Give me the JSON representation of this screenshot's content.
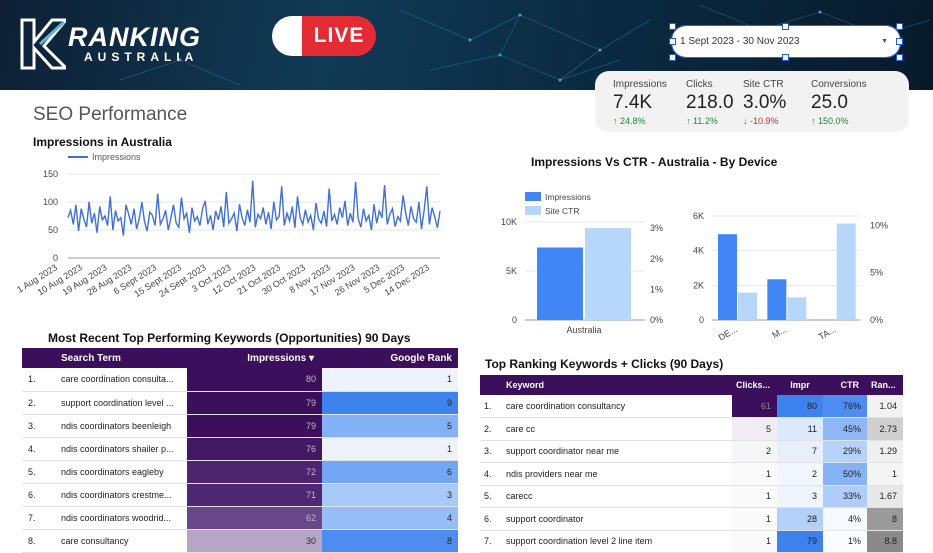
{
  "brand": {
    "name": "RANKING",
    "sub": "AUSTRALIA",
    "live": "LIVE"
  },
  "date_range": "1 Sept 2023 - 30 Nov 2023",
  "page_title": "SEO Performance",
  "kpis": [
    {
      "label": "Impressions",
      "value": "7.4K",
      "delta": "↑ 24.8%",
      "dir": "up"
    },
    {
      "label": "Clicks",
      "value": "218.0",
      "delta": "↑ 11.2%",
      "dir": "up"
    },
    {
      "label": "Site CTR",
      "value": "3.0%",
      "delta": "↓ -10.9%",
      "dir": "down"
    },
    {
      "label": "Conversions",
      "value": "25.0",
      "delta": "↑ 150.0%",
      "dir": "up"
    }
  ],
  "chart_data": [
    {
      "type": "line",
      "title": "Impressions in Australia",
      "legend": [
        "Impressions"
      ],
      "ylim": [
        0,
        150
      ],
      "yticks": [
        "150",
        "100",
        "50",
        "0"
      ],
      "xticks": [
        "1 Aug 2023",
        "10 Aug 2023",
        "19 Aug 2023",
        "28 Aug 2023",
        "6 Sept 2023",
        "15 Sept 2023",
        "24 Sept 2023",
        "3 Oct 2023",
        "12 Oct 2023",
        "21 Oct 2023",
        "30 Oct 2023",
        "8 Nov 2023",
        "17 Nov 2023",
        "26 Nov 2023",
        "5 Dec 2023",
        "14 Dec 2023"
      ],
      "series": [
        {
          "name": "Impressions",
          "color": "#3f6fd8",
          "values": [
            72,
            85,
            60,
            95,
            48,
            88,
            70,
            55,
            100,
            62,
            80,
            45,
            92,
            68,
            75,
            58,
            110,
            50,
            85,
            66,
            72,
            40,
            95,
            78,
            60,
            88,
            52,
            70,
            100,
            65,
            48,
            82,
            76,
            58,
            115,
            60,
            70,
            85,
            50,
            72,
            95,
            62,
            55,
            108,
            70,
            80,
            45,
            90,
            66,
            74,
            58,
            88,
            102,
            60,
            76,
            50,
            84,
            68,
            92,
            55,
            118,
            62,
            70,
            80,
            48,
            96,
            72,
            58,
            86,
            64,
            138,
            55,
            78,
            70,
            90,
            60,
            82,
            52,
            100,
            68,
            74,
            128,
            58,
            80,
            66,
            92,
            54,
            110,
            72,
            60,
            86,
            64,
            76,
            50,
            98,
            70,
            62,
            84,
            56,
            124,
            66,
            78,
            60,
            90,
            72,
            102,
            58,
            80,
            64,
            136,
            70,
            55,
            88,
            66,
            76,
            50,
            96,
            62,
            84,
            72,
            130,
            60,
            78,
            88,
            56,
            74,
            66,
            112,
            80,
            58,
            92,
            70,
            64,
            100,
            52,
            86,
            128,
            60,
            90,
            74,
            54,
            84
          ]
        }
      ]
    },
    {
      "type": "bar",
      "title": "Impressions Vs CTR - Australia - By Device",
      "legend": [
        "Impressions",
        "Site CTR"
      ],
      "categories": [
        "Australia"
      ],
      "series": [
        {
          "name": "Impressions",
          "color": "#4285f4",
          "values": [
            7400
          ]
        },
        {
          "name": "Site CTR",
          "color": "#b6d7fb",
          "values": [
            3.0
          ]
        }
      ],
      "yticks_left": [
        "10K",
        "5K",
        "0"
      ],
      "yticks_right": [
        "3%",
        "2%",
        "1%",
        "0%"
      ]
    },
    {
      "type": "bar",
      "categories": [
        "DE...",
        "M...",
        "TA..."
      ],
      "series": [
        {
          "name": "Impressions",
          "color": "#4285f4",
          "values": [
            4950,
            2350,
            0
          ]
        },
        {
          "name": "Site CTR",
          "color": "#b6d7fb",
          "values": [
            2.9,
            2.4,
            10.2
          ]
        }
      ],
      "yticks_left": [
        "6K",
        "4K",
        "2K",
        "0"
      ],
      "yticks_right": [
        "10%",
        "5%",
        "0%"
      ]
    }
  ],
  "table1": {
    "title": "Most Recent Top Performing Keywords (Opportunities) 90 Days",
    "headers": [
      "Search Term",
      "Impressions ▾",
      "Google Rank"
    ],
    "rows": [
      {
        "i": "1.",
        "term": "care coordination consulta...",
        "impr": "80",
        "rank": "1",
        "ic": "#3b0f5b",
        "rc": "#eef2fb"
      },
      {
        "i": "2.",
        "term": "support coordination level ...",
        "impr": "79",
        "rank": "9",
        "ic": "#3b0f5b",
        "rc": "#3e82ee"
      },
      {
        "i": "3.",
        "term": "ndis coordinators beenleigh",
        "impr": "79",
        "rank": "5",
        "ic": "#3b0f5b",
        "rc": "#82b1f5"
      },
      {
        "i": "4.",
        "term": "ndis coordinators shailer p...",
        "impr": "76",
        "rank": "1",
        "ic": "#421763",
        "rc": "#eef2fb"
      },
      {
        "i": "5.",
        "term": "ndis coordinators eagleby",
        "impr": "72",
        "rank": "6",
        "ic": "#4c2470",
        "rc": "#73a6f3"
      },
      {
        "i": "6.",
        "term": "ndis coordinators crestme...",
        "impr": "71",
        "rank": "3",
        "ic": "#4e2772",
        "rc": "#a9c9f8"
      },
      {
        "i": "7.",
        "term": "ndis coordinators woodrid...",
        "impr": "62",
        "rank": "4",
        "ic": "#684888",
        "rc": "#97bdf6"
      },
      {
        "i": "8.",
        "term": "care consultancy",
        "impr": "30",
        "rank": "8",
        "ic": "#b7a5c6",
        "rc": "#4f8cf0"
      }
    ]
  },
  "table2": {
    "title": "Top Ranking Keywords + Clicks (90 Days)",
    "headers": [
      "Keyword",
      "Clicks...",
      "Impr",
      "CTR",
      "Ran..."
    ],
    "rows": [
      {
        "i": "1.",
        "kw": "care coordination consultancy",
        "clicks": "61",
        "impr": "80",
        "ctr": "76%",
        "rank": "1.04",
        "cc": "#3b0f5b",
        "icol": "#3e82ee",
        "ctrc": "#4f8cf0",
        "rkc": "#f3f3f3"
      },
      {
        "i": "2.",
        "kw": "care cc",
        "clicks": "5",
        "impr": "11",
        "ctr": "45%",
        "rank": "2.73",
        "cc": "#f0edf3",
        "icol": "#dde9fc",
        "ctrc": "#8fb8f6",
        "rkc": "#cfcfcf"
      },
      {
        "i": "3.",
        "kw": "support coordinator near me",
        "clicks": "2",
        "impr": "7",
        "ctr": "29%",
        "rank": "1.29",
        "cc": "#f6f5f8",
        "icol": "#e7effd",
        "ctrc": "#b6d2f9",
        "rkc": "#efefef"
      },
      {
        "i": "4.",
        "kw": "ndis providers near me",
        "clicks": "1",
        "impr": "2",
        "ctr": "50%",
        "rank": "1",
        "cc": "#fafafa",
        "icol": "#f2f6fe",
        "ctrc": "#86b2f6",
        "rkc": "#f5f5f5"
      },
      {
        "i": "5.",
        "kw": "carecc",
        "clicks": "1",
        "impr": "3",
        "ctr": "33%",
        "rank": "1.67",
        "cc": "#fafafa",
        "icol": "#eff4fd",
        "ctrc": "#afcdf8",
        "rkc": "#e8e8e8"
      },
      {
        "i": "6.",
        "kw": "support coordinator",
        "clicks": "1",
        "impr": "28",
        "ctr": "4%",
        "rank": "8",
        "cc": "#fafafa",
        "icol": "#b3d0f8",
        "ctrc": "#f6f9fe",
        "rkc": "#9a9a9a"
      },
      {
        "i": "7.",
        "kw": "support coordination level 2 line item",
        "clicks": "1",
        "impr": "79",
        "ctr": "1%",
        "rank": "8.8",
        "cc": "#fafafa",
        "icol": "#3e82ee",
        "ctrc": "#fafcff",
        "rkc": "#8a8a8a"
      }
    ]
  }
}
